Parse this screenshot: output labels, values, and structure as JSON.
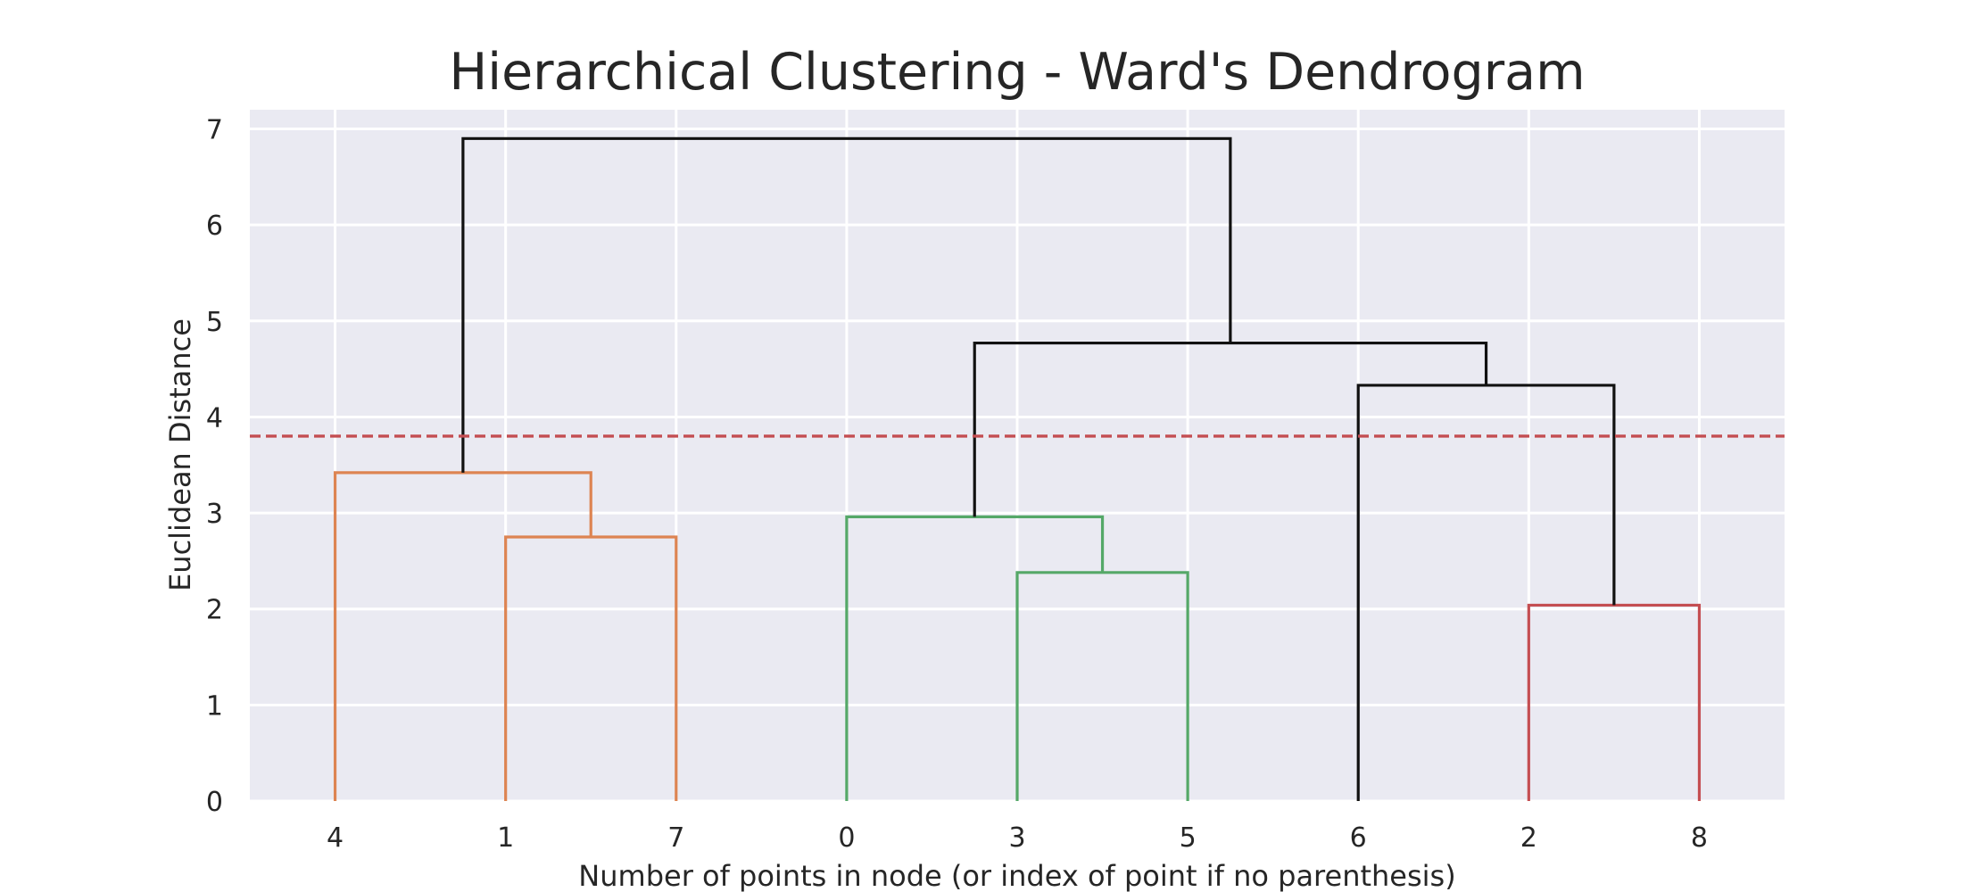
{
  "chart_data": {
    "type": "dendrogram",
    "title": "Hierarchical Clustering - Ward's Dendrogram",
    "xlabel": "Number of points in node (or index of point if no parenthesis)",
    "ylabel": "Euclidean Distance",
    "ylim": [
      0,
      7.2
    ],
    "yticks": [
      0,
      1,
      2,
      3,
      4,
      5,
      6,
      7
    ],
    "grid": true,
    "background": "#eaeaf2",
    "grid_color": "#ffffff",
    "leaves": [
      "4",
      "1",
      "7",
      "0",
      "3",
      "5",
      "6",
      "2",
      "8"
    ],
    "merges": [
      {
        "left": [
          "leaf",
          1
        ],
        "right": [
          "leaf",
          2
        ],
        "height": 2.75,
        "color": "#dd8452"
      },
      {
        "left": [
          "leaf",
          0
        ],
        "right": [
          "node",
          0
        ],
        "height": 3.42,
        "color": "#dd8452"
      },
      {
        "left": [
          "leaf",
          4
        ],
        "right": [
          "leaf",
          5
        ],
        "height": 2.38,
        "color": "#55a868"
      },
      {
        "left": [
          "leaf",
          3
        ],
        "right": [
          "node",
          2
        ],
        "height": 2.96,
        "color": "#55a868"
      },
      {
        "left": [
          "leaf",
          7
        ],
        "right": [
          "leaf",
          8
        ],
        "height": 2.04,
        "color": "#c44e52"
      },
      {
        "left": [
          "leaf",
          6
        ],
        "right": [
          "node",
          4
        ],
        "height": 4.33,
        "color": "#111111"
      },
      {
        "left": [
          "node",
          3
        ],
        "right": [
          "node",
          5
        ],
        "height": 4.77,
        "color": "#111111"
      },
      {
        "left": [
          "node",
          1
        ],
        "right": [
          "node",
          6
        ],
        "height": 6.9,
        "color": "#111111"
      }
    ],
    "threshold": {
      "value": 3.8,
      "color": "#c44e52",
      "style": "dashed"
    }
  }
}
